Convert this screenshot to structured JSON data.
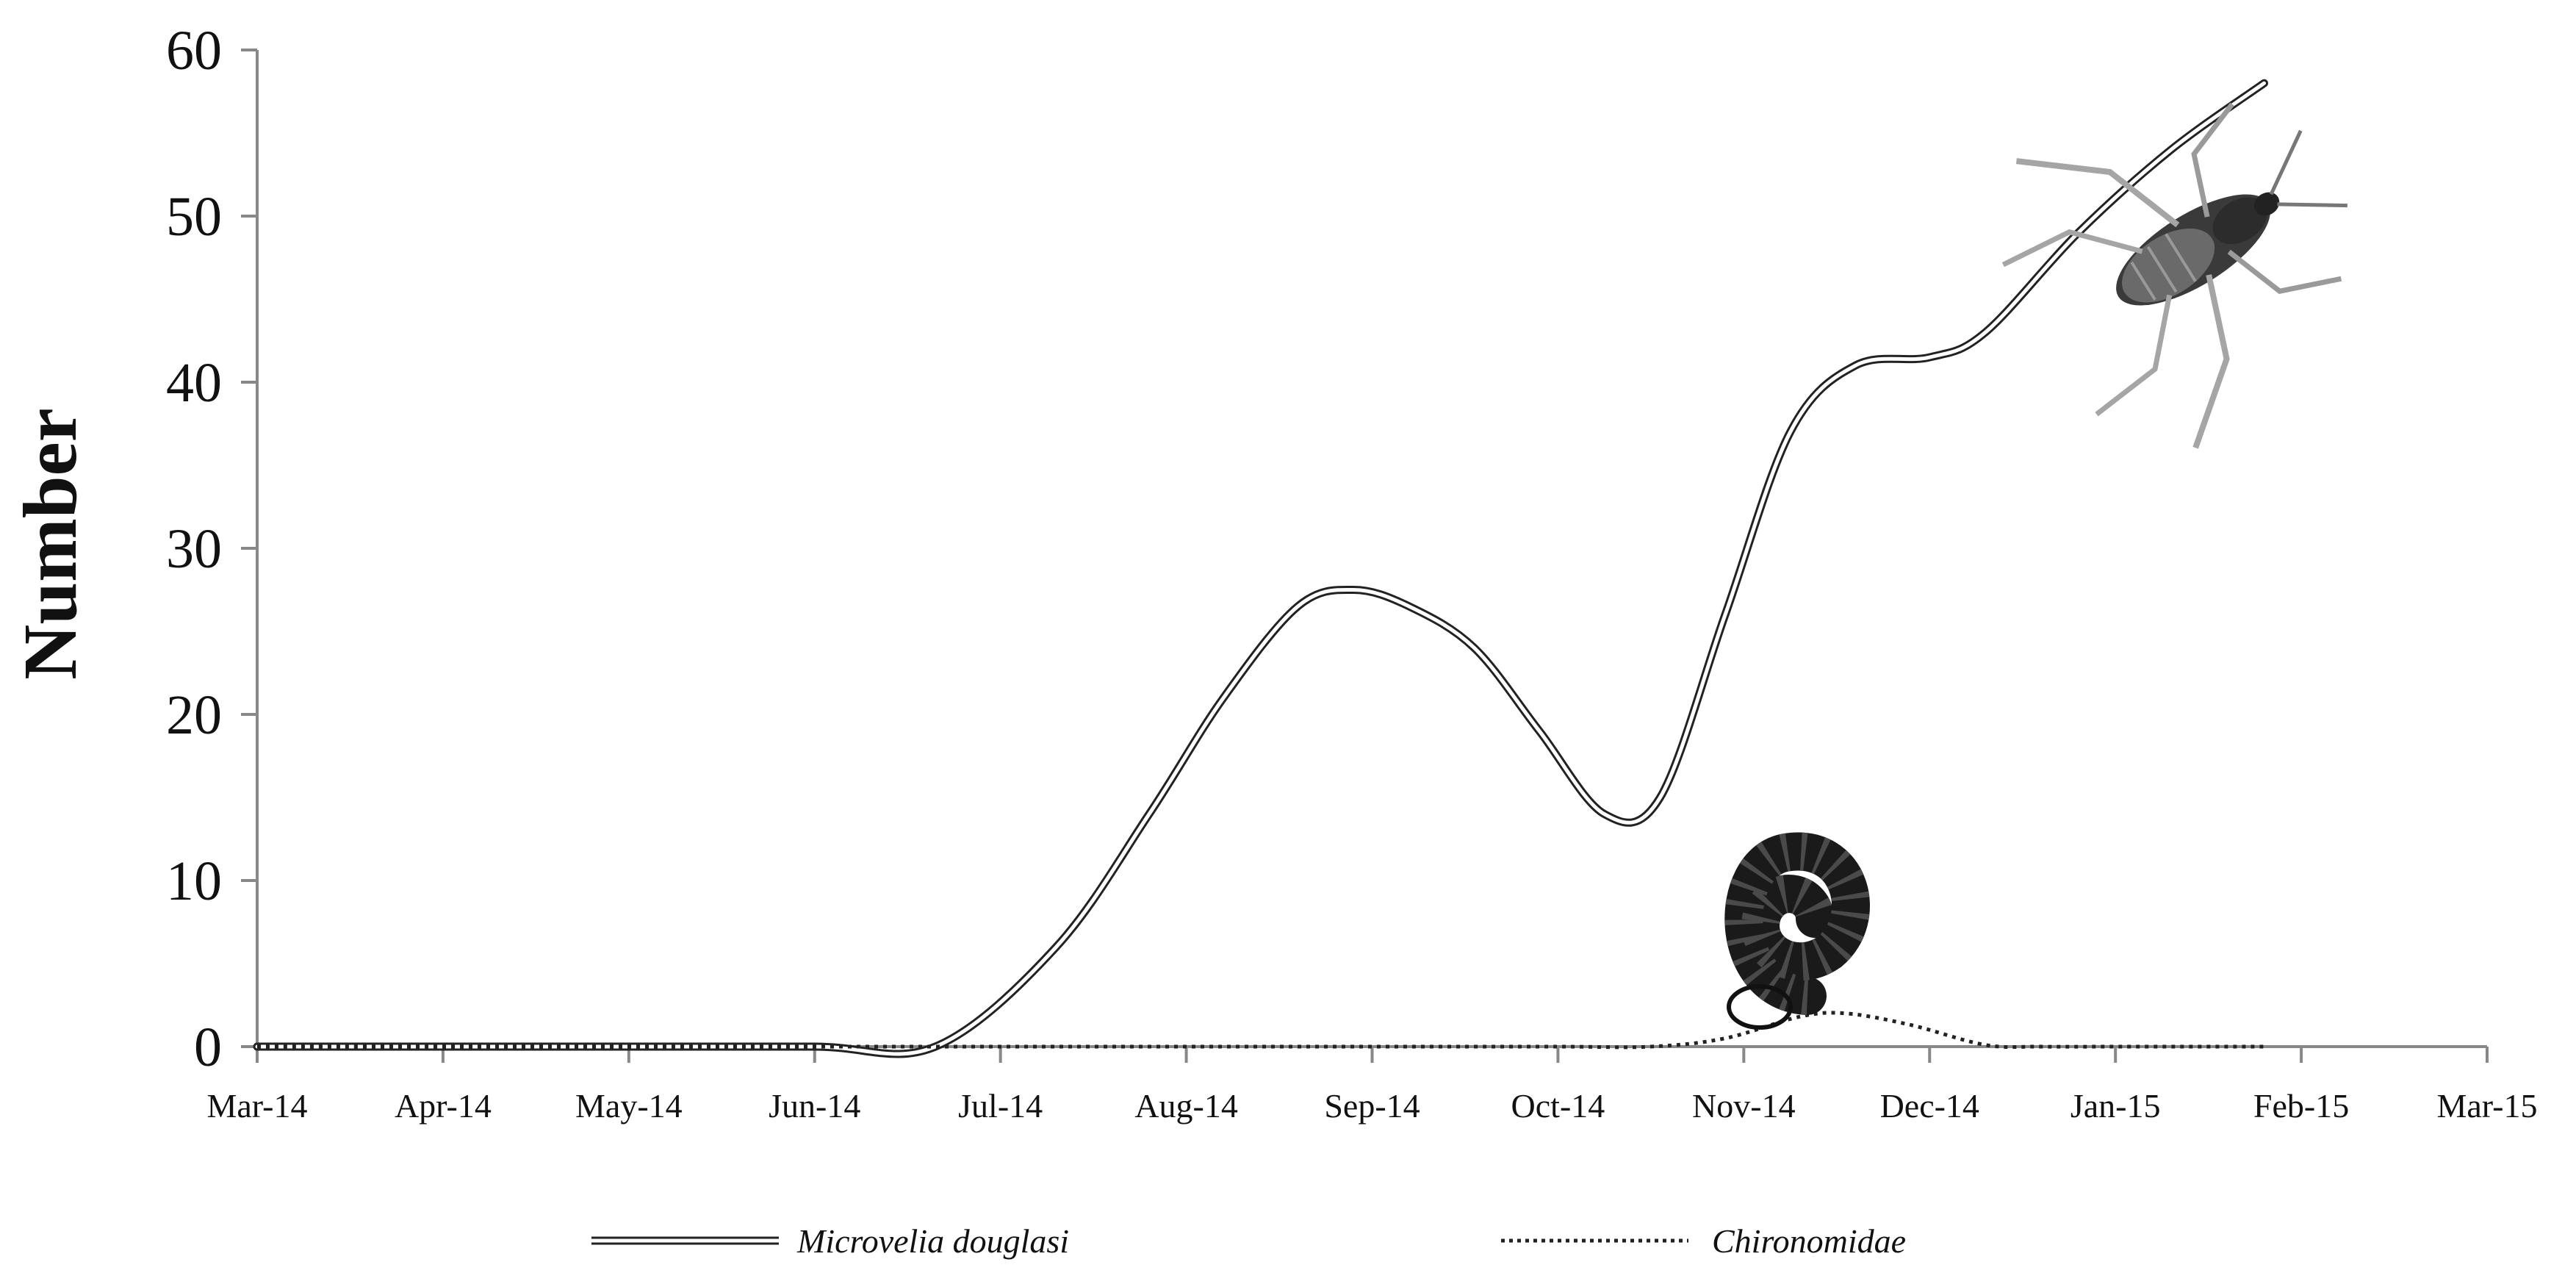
{
  "chart_data": {
    "type": "line",
    "title": "",
    "xlabel": "",
    "ylabel": "Number",
    "ylim": [
      0,
      60
    ],
    "yticks": [
      "0",
      "10",
      "20",
      "30",
      "40",
      "50",
      "60"
    ],
    "categories": [
      "Mar-14",
      "Apr-14",
      "May-14",
      "Jun-14",
      "Jul-14",
      "Aug-14",
      "Sep-14",
      "Oct-14",
      "Nov-14",
      "Dec-14",
      "Jan-15",
      "Feb-15",
      "Mar-15"
    ],
    "grid": false,
    "legend_position": "bottom",
    "series": [
      {
        "name": "Microvelia douglasi",
        "style": "double-line",
        "color": "#222222",
        "points": [
          [
            0,
            0
          ],
          [
            1,
            0
          ],
          [
            2,
            0
          ],
          [
            3,
            0
          ],
          [
            3.65,
            0
          ],
          [
            4.3,
            6
          ],
          [
            4.8,
            14
          ],
          [
            5.2,
            21
          ],
          [
            5.6,
            26.5
          ],
          [
            5.9,
            27.5
          ],
          [
            6.2,
            26.5
          ],
          [
            6.55,
            24
          ],
          [
            6.9,
            19
          ],
          [
            7.25,
            14
          ],
          [
            7.55,
            15
          ],
          [
            7.9,
            26
          ],
          [
            8.25,
            37
          ],
          [
            8.6,
            41
          ],
          [
            9.0,
            41.5
          ],
          [
            9.3,
            43
          ],
          [
            9.8,
            49
          ],
          [
            10.3,
            54
          ],
          [
            10.8,
            58
          ]
        ]
      },
      {
        "name": "Chironomidae",
        "style": "dotted",
        "color": "#222222",
        "points": [
          [
            0,
            0
          ],
          [
            1,
            0
          ],
          [
            2,
            0
          ],
          [
            3,
            0
          ],
          [
            4,
            0
          ],
          [
            5,
            0
          ],
          [
            6,
            0
          ],
          [
            7,
            0
          ],
          [
            7.5,
            0
          ],
          [
            7.9,
            0.5
          ],
          [
            8.3,
            1.8
          ],
          [
            8.55,
            2
          ],
          [
            8.9,
            1.3
          ],
          [
            9.3,
            0.1
          ],
          [
            9.6,
            0
          ],
          [
            10,
            0
          ],
          [
            10.8,
            0
          ]
        ]
      }
    ]
  },
  "images": {
    "insect": "water-strider-photo",
    "larva": "coiled-larva-photo"
  }
}
